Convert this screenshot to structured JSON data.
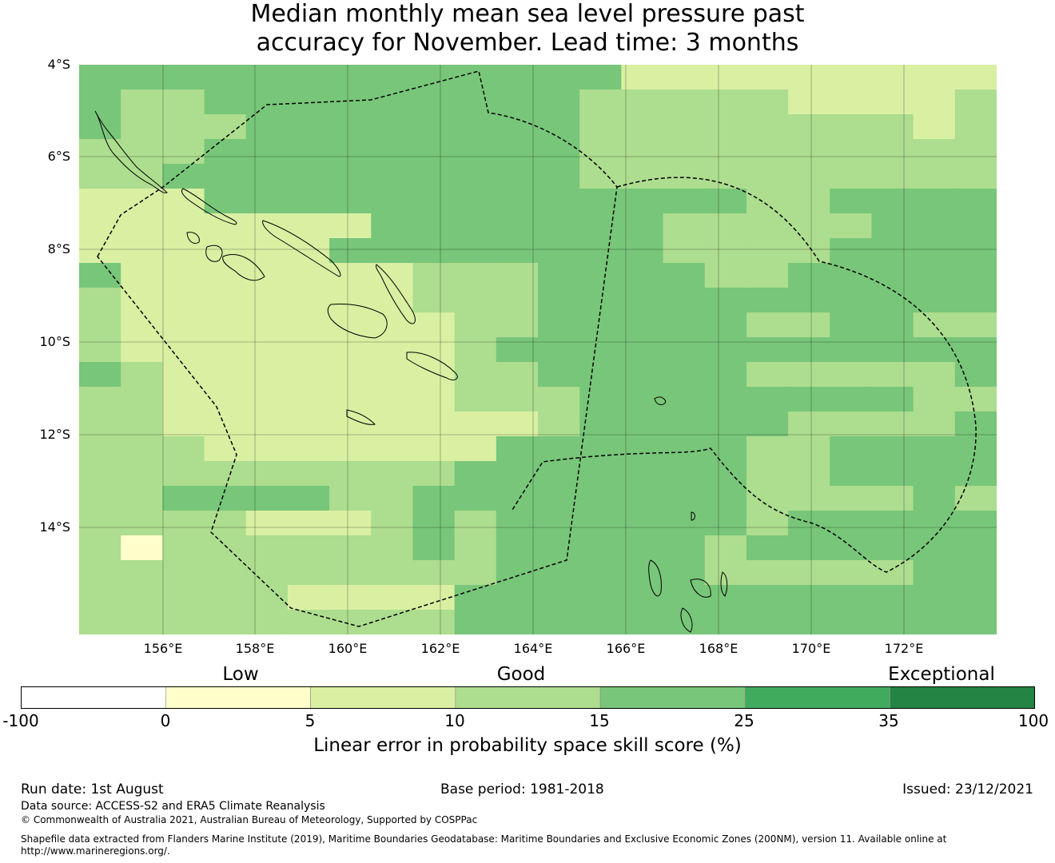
{
  "title_line1": "Median monthly mean sea level pressure past",
  "title_line2": "accuracy for November. Lead time: 3 months",
  "map": {
    "lat_labels": [
      "4°S",
      "6°S",
      "8°S",
      "10°S",
      "12°S",
      "14°S"
    ],
    "lon_labels": [
      "156°E",
      "158°E",
      "160°E",
      "162°E",
      "164°E",
      "166°E",
      "168°E",
      "170°E",
      "172°E"
    ],
    "extent": {
      "lon_min": 154.2,
      "lon_max": 174.0,
      "lat_top": -4.0,
      "lat_bottom": -16.3
    },
    "grid_cell_deg": 0.8333,
    "score_grid_comment_free": true,
    "score_grid": [
      "CCCCCCCCCCCCCAAAAAAAAA",
      "CBBCCCCCCCCCBBBBBAAAAB",
      "CBBBCCCCCCCCBBBBBBBBAB",
      "BBBCCCCCCCCCBBBBBBBBBB",
      "BBCCCCCCCCCCBBBBBBBBBB",
      "AAACCCCCCCCCCCCCBBCCCC",
      "AAAAAAACCCCCCCBBBBBCCC",
      "AAAAAACCCCCCCCBBBBCCCC",
      "CAAAAAAABBBCCCCBBCCCCC",
      "BAAAAAAABBBCCCCCCCCCCC",
      "BAAAAAAAABBCCCCCBBCCBB",
      "BAAAAAAAABCCCCCCCCCCCC",
      "CBAAAAAAABBCCCCCBBBBBC",
      "BBAAAAAAABBBCCCCCCCCBB",
      "BBAAAAAAAAABCCCCCBBBBC",
      "BBBAAAAAAACCCCCCBBCCCC",
      "BBBBBBBBBCCCCCCCBBCCCC",
      "BBCCCCBBCCCCCCCCBBBBCB",
      "BBBBAAABCBCCCCCCBCCCCC",
      "BDBBBBBBCBCCCCCBCCCCCC",
      "BBBBBBBBBBCCCCCBBBBBCC",
      "BBBBBAAAACCCCCCCCCCCCC",
      "BBBBBBBBBCCCCCCCCCCCCC"
    ],
    "score_legend": {
      "D": "0-5",
      "A": "5-10",
      "B": "10-15",
      "C": "15-25"
    }
  },
  "categories": {
    "low": "Low",
    "good": "Good",
    "exceptional": "Exceptional"
  },
  "colorbar": {
    "bins": [
      {
        "from": -100,
        "to": 0,
        "color": "#ffffff"
      },
      {
        "from": 0,
        "to": 5,
        "color": "#ffffcc"
      },
      {
        "from": 5,
        "to": 10,
        "color": "#d9f0a3"
      },
      {
        "from": 10,
        "to": 15,
        "color": "#addd8e"
      },
      {
        "from": 15,
        "to": 25,
        "color": "#78c679"
      },
      {
        "from": 25,
        "to": 35,
        "color": "#41ab5d"
      },
      {
        "from": 35,
        "to": 100,
        "color": "#238443"
      }
    ],
    "tick_labels": [
      "-100",
      "0",
      "5",
      "10",
      "15",
      "25",
      "35",
      "100"
    ],
    "title": "Linear error in probability space skill score (%)"
  },
  "footer": {
    "run_date": "Run date: 1st August",
    "base_period": "Base period: 1981-2018",
    "issued": "Issued: 23/12/2021",
    "data_source": "Data source: ACCESS-S2 and ERA5 Climate Reanalysis",
    "copyright": "© Commonwealth of Australia 2021, Australian Bureau of Meteorology, Supported by COSPPac",
    "shapefile_line1": "Shapefile data extracted from Flanders Marine Institute (2019), Maritime Boundaries Geodatabase: Maritime Boundaries and Exclusive Economic Zones (200NM), version 11. Available online at",
    "shapefile_line2": "http://www.marineregions.org/."
  }
}
